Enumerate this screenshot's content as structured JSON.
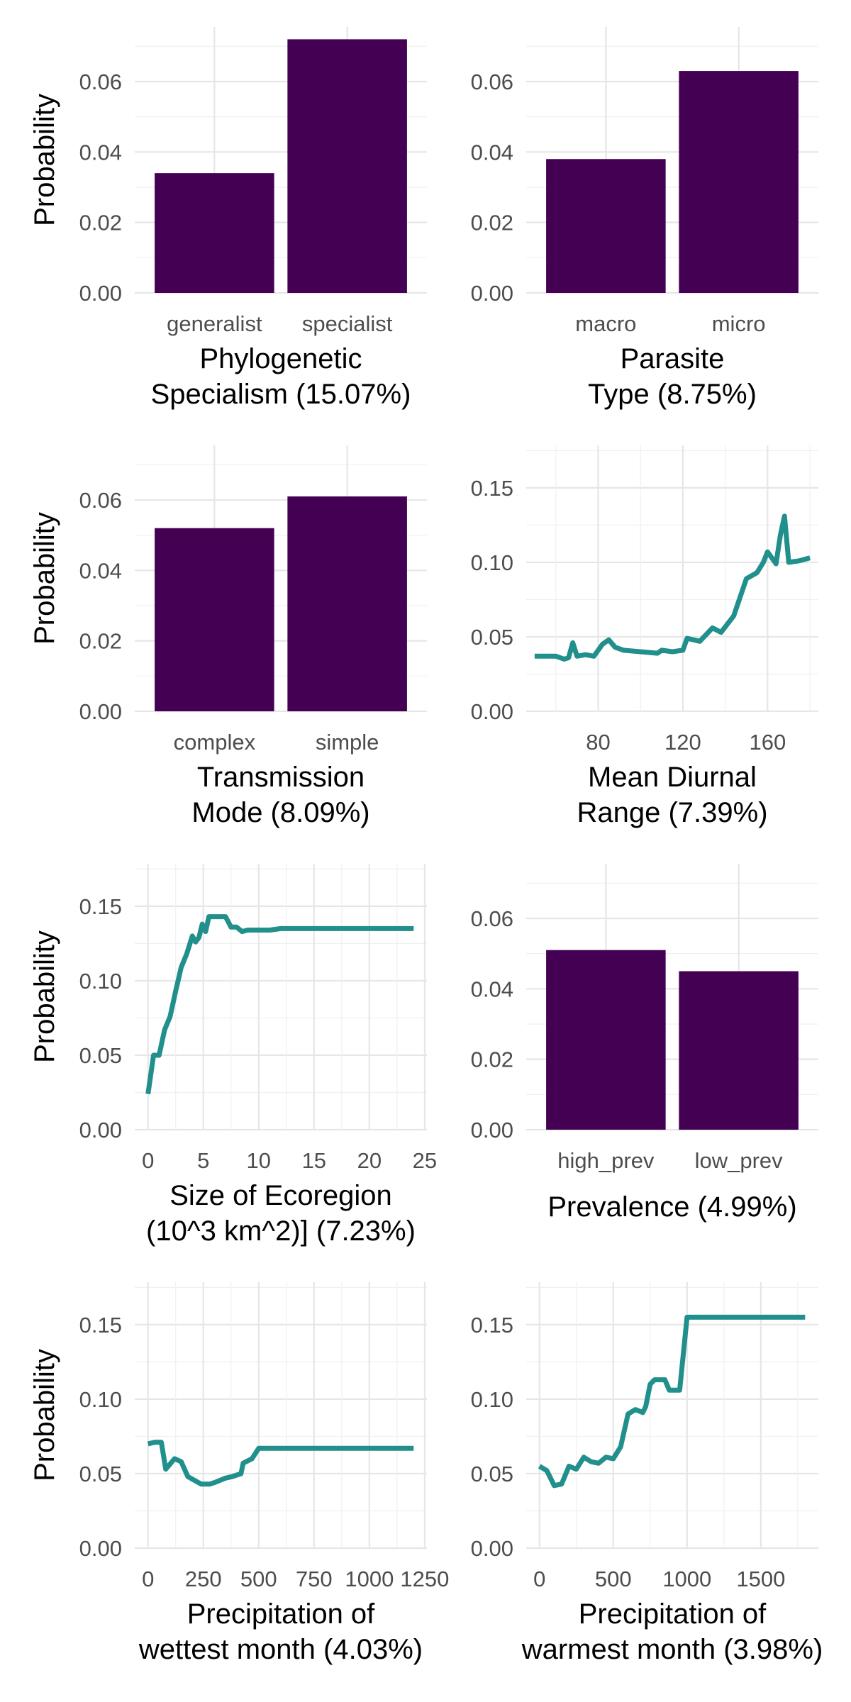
{
  "colors": {
    "bar": "#440154",
    "line": "#21908C",
    "grid": "#e6e6e6"
  },
  "chart_data": [
    {
      "id": "phylo",
      "type": "bar",
      "categories": [
        "generalist",
        "specialist"
      ],
      "values": [
        0.034,
        0.072
      ],
      "xlabel": [
        "Phylogenetic",
        "Specialism (15.07%)"
      ],
      "ylabel": "Probability",
      "ylim": [
        0,
        0.0755
      ],
      "yticks": [
        0,
        0.02,
        0.04,
        0.06
      ],
      "ytick_labels": [
        "0.00",
        "0.02",
        "0.04",
        "0.06"
      ],
      "grid": true
    },
    {
      "id": "parasite",
      "type": "bar",
      "categories": [
        "macro",
        "micro"
      ],
      "values": [
        0.038,
        0.063
      ],
      "xlabel": [
        "Parasite",
        "Type (8.75%)"
      ],
      "ylabel": "",
      "ylim": [
        0,
        0.0755
      ],
      "yticks": [
        0,
        0.02,
        0.04,
        0.06
      ],
      "ytick_labels": [
        "0.00",
        "0.02",
        "0.04",
        "0.06"
      ],
      "grid": true
    },
    {
      "id": "transmission",
      "type": "bar",
      "categories": [
        "complex",
        "simple"
      ],
      "values": [
        0.052,
        0.061
      ],
      "xlabel": [
        "Transmission",
        "Mode (8.09%)"
      ],
      "ylabel": "Probability",
      "ylim": [
        0,
        0.0755
      ],
      "yticks": [
        0,
        0.02,
        0.04,
        0.06
      ],
      "ytick_labels": [
        "0.00",
        "0.02",
        "0.04",
        "0.06"
      ],
      "grid": true
    },
    {
      "id": "diurnal",
      "type": "line",
      "x": [
        50,
        55,
        60,
        64,
        66,
        68,
        70,
        74,
        78,
        82,
        85,
        88,
        92,
        100,
        108,
        110,
        115,
        120,
        122,
        128,
        134,
        138,
        144,
        150,
        155,
        158,
        160,
        164,
        166,
        168,
        170,
        175,
        180
      ],
      "y": [
        0.037,
        0.037,
        0.037,
        0.035,
        0.036,
        0.046,
        0.037,
        0.038,
        0.037,
        0.045,
        0.048,
        0.043,
        0.041,
        0.04,
        0.039,
        0.041,
        0.04,
        0.041,
        0.049,
        0.047,
        0.056,
        0.053,
        0.064,
        0.089,
        0.093,
        0.1,
        0.107,
        0.099,
        0.118,
        0.131,
        0.1,
        0.101,
        0.103
      ],
      "xlabel": [
        "Mean Diurnal",
        "Range (7.39%)"
      ],
      "ylabel": "",
      "xlim": [
        46,
        184
      ],
      "xticks": [
        80,
        120,
        160
      ],
      "xtick_labels": [
        "80",
        "120",
        "160"
      ],
      "ylim": [
        0,
        0.1785
      ],
      "yticks": [
        0,
        0.05,
        0.1,
        0.15
      ],
      "ytick_labels": [
        "0.00",
        "0.05",
        "0.10",
        "0.15"
      ],
      "grid": true
    },
    {
      "id": "ecoregion",
      "type": "line",
      "x": [
        0,
        0.5,
        1,
        1.5,
        2,
        2.5,
        3,
        3.5,
        4,
        4.3,
        4.6,
        4.9,
        5.2,
        5.5,
        5.8,
        6.2,
        7,
        7.5,
        8,
        8.5,
        9,
        10,
        11,
        12,
        15,
        20,
        24
      ],
      "y": [
        0.024,
        0.05,
        0.05,
        0.067,
        0.076,
        0.093,
        0.109,
        0.118,
        0.13,
        0.126,
        0.129,
        0.138,
        0.133,
        0.143,
        0.143,
        0.143,
        0.143,
        0.136,
        0.136,
        0.133,
        0.134,
        0.134,
        0.134,
        0.135,
        0.135,
        0.135,
        0.135
      ],
      "xlabel": [
        "Size of Ecoregion",
        "(10^3 km^2)] (7.23%)"
      ],
      "ylabel": "Probability",
      "xlim": [
        -1.2,
        25.2
      ],
      "xticks": [
        0,
        5,
        10,
        15,
        20,
        25
      ],
      "xtick_labels": [
        "0",
        "5",
        "10",
        "15",
        "20",
        "25"
      ],
      "ylim": [
        0,
        0.1785
      ],
      "yticks": [
        0,
        0.05,
        0.1,
        0.15
      ],
      "ytick_labels": [
        "0.00",
        "0.05",
        "0.10",
        "0.15"
      ],
      "grid": true
    },
    {
      "id": "prevalence",
      "type": "bar",
      "categories": [
        "high_prev",
        "low_prev"
      ],
      "values": [
        0.051,
        0.045
      ],
      "xlabel": [
        "Prevalence (4.99%)"
      ],
      "ylabel": "",
      "ylim": [
        0,
        0.0755
      ],
      "yticks": [
        0,
        0.02,
        0.04,
        0.06
      ],
      "ytick_labels": [
        "0.00",
        "0.02",
        "0.04",
        "0.06"
      ],
      "grid": true
    },
    {
      "id": "wettest",
      "type": "line",
      "x": [
        0,
        30,
        60,
        80,
        120,
        150,
        180,
        240,
        280,
        300,
        350,
        380,
        420,
        430,
        470,
        500,
        600,
        800,
        1000,
        1200
      ],
      "y": [
        0.07,
        0.071,
        0.071,
        0.053,
        0.06,
        0.058,
        0.048,
        0.043,
        0.043,
        0.044,
        0.047,
        0.048,
        0.05,
        0.057,
        0.06,
        0.067,
        0.067,
        0.067,
        0.067,
        0.067
      ],
      "xlabel": [
        "Precipitation of",
        "wettest month (4.03%)"
      ],
      "ylabel": "Probability",
      "xlim": [
        -60,
        1260
      ],
      "xticks": [
        0,
        250,
        500,
        750,
        1000,
        1250
      ],
      "xtick_labels": [
        "0",
        "250",
        "500",
        "750",
        "1000",
        "1250"
      ],
      "ylim": [
        0,
        0.1785
      ],
      "yticks": [
        0,
        0.05,
        0.1,
        0.15
      ],
      "ytick_labels": [
        "0.00",
        "0.05",
        "0.10",
        "0.15"
      ],
      "grid": true
    },
    {
      "id": "warmest",
      "type": "line",
      "x": [
        0,
        50,
        100,
        150,
        200,
        250,
        300,
        350,
        400,
        450,
        500,
        550,
        600,
        650,
        700,
        720,
        750,
        780,
        850,
        880,
        950,
        1000,
        1100,
        1300,
        1500,
        1800
      ],
      "y": [
        0.055,
        0.052,
        0.042,
        0.043,
        0.055,
        0.053,
        0.061,
        0.058,
        0.057,
        0.061,
        0.06,
        0.068,
        0.09,
        0.093,
        0.091,
        0.095,
        0.11,
        0.113,
        0.113,
        0.106,
        0.106,
        0.155,
        0.155,
        0.155,
        0.155,
        0.155
      ],
      "xlabel": [
        "Precipitation of",
        "warmest month (3.98%)"
      ],
      "ylabel": "",
      "xlim": [
        -90,
        1890
      ],
      "xticks": [
        0,
        500,
        1000,
        1500
      ],
      "xtick_labels": [
        "0",
        "500",
        "1000",
        "1500"
      ],
      "ylim": [
        0,
        0.1785
      ],
      "yticks": [
        0,
        0.05,
        0.1,
        0.15
      ],
      "ytick_labels": [
        "0.00",
        "0.05",
        "0.10",
        "0.15"
      ],
      "grid": true
    }
  ]
}
